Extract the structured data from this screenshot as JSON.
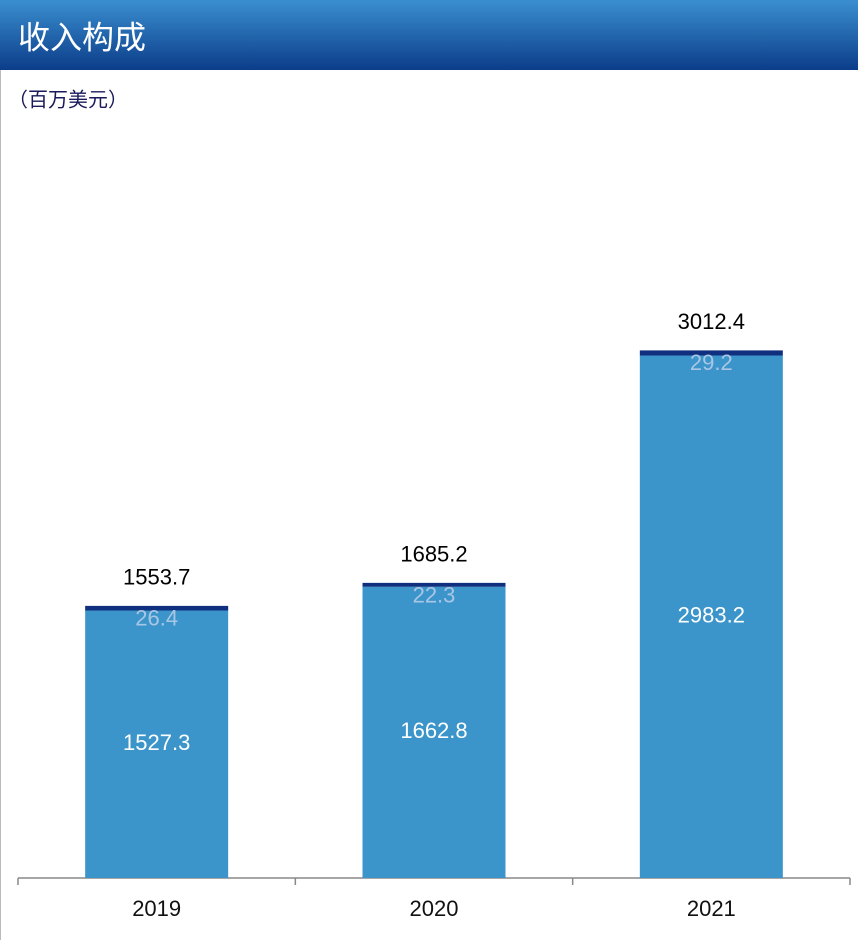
{
  "chart_data": {
    "type": "stacked-bar",
    "title": "收入构成",
    "subtitle": "（百万美元）",
    "categories": [
      "2019",
      "2020",
      "2021"
    ],
    "series": [
      {
        "color": "#3b95ca",
        "label_color": "#ffffff",
        "values": [
          1527.3,
          1662.8,
          2983.2
        ]
      },
      {
        "color": "#10307f",
        "label_color": "#a9c6e4",
        "values": [
          26.4,
          22.3,
          29.2
        ]
      }
    ],
    "totals": [
      1553.7,
      1685.2,
      3012.4
    ],
    "ylim": [
      0,
      3500
    ]
  }
}
